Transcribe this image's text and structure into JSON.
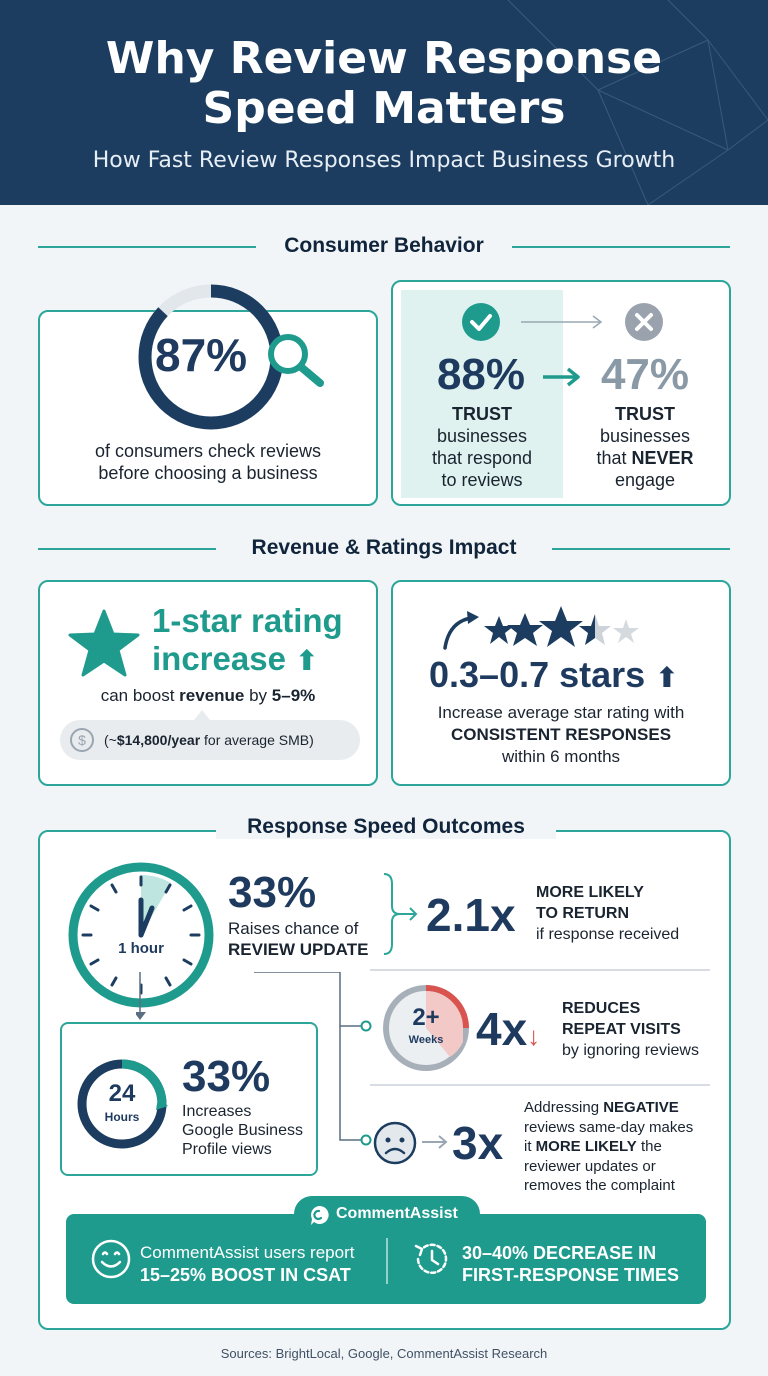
{
  "header": {
    "title_line1": "Why Review Response",
    "title_line2": "Speed Matters",
    "subtitle": "How Fast Review Responses Impact Business Growth"
  },
  "consumer": {
    "heading": "Consumer Behavior",
    "check": {
      "value": "87%",
      "fraction": 0.87,
      "line1": "of consumers check reviews",
      "line2": "before choosing a business"
    },
    "respond": {
      "value": "88%",
      "l1": "TRUST",
      "l2": "businesses",
      "l3": "that respond",
      "l4": "to reviews"
    },
    "never": {
      "value": "47%",
      "l1": "TRUST",
      "l2": "businesses",
      "l3a": "that ",
      "l3b": "NEVER",
      "l4": "engage"
    }
  },
  "revenue": {
    "heading": "Revenue & Ratings Impact",
    "rating": {
      "line1": "1-star rating",
      "line2": "increase",
      "boost_a": "can boost ",
      "boost_b": "revenue",
      "boost_c": " by ",
      "boost_d": "5–9%",
      "pill_a": "(~",
      "pill_b": "$14,800/year",
      "pill_c": " for average SMB)"
    },
    "stars": {
      "value": "0.3–0.7 stars",
      "line1": "Increase average star rating with",
      "line2": "CONSISTENT RESPONSES",
      "line3": "within 6 months"
    }
  },
  "speed": {
    "heading": "Response Speed Outcomes",
    "clock_label": "1 hour",
    "update": {
      "value": "33%",
      "line1": "Raises chance of",
      "line2": "REVIEW UPDATE"
    },
    "return": {
      "value": "2.1x",
      "line1": "MORE LIKELY",
      "line2": "TO RETURN",
      "line3": "if response received"
    },
    "hours": {
      "num": "24",
      "unit": "Hours",
      "value": "33%",
      "line1": "Increases",
      "line2": "Google Business",
      "line3": "Profile views"
    },
    "weeks": {
      "num": "2+",
      "unit": "Weeks",
      "value": "4x",
      "line1": "REDUCES",
      "line2": "REPEAT VISITS",
      "line3": "by ignoring reviews"
    },
    "negative": {
      "value": "3x",
      "l1a": "Addressing ",
      "l1b": "NEGATIVE",
      "l2": "reviews same-day makes",
      "l3a": "it ",
      "l3b": "MORE LIKELY",
      "l3c": " the",
      "l4": "reviewer updates or",
      "l5": "removes the complaint"
    },
    "brand": "CommentAssist",
    "csat_line1": "CommentAssist users report",
    "csat_line2": "15–25% BOOST IN CSAT",
    "frt_line1": "30–40% DECREASE IN",
    "frt_line2": "FIRST-RESPONSE TIMES"
  },
  "sources": "Sources: BrightLocal, Google, CommentAssist Research",
  "colors": {
    "navy": "#1c3d60",
    "teal": "#2ca69a",
    "red": "#d9534f"
  }
}
